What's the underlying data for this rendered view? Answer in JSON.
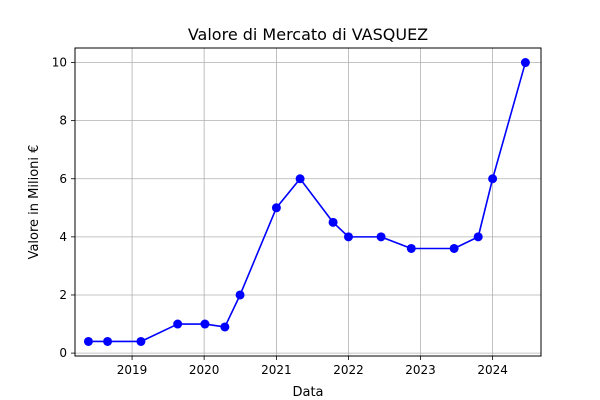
{
  "chart_data": {
    "type": "line",
    "title": "Valore di Mercato di VASQUEZ",
    "xlabel": "Data",
    "ylabel": "Valore in Milioni €",
    "x_tick_labels": [
      "2019",
      "2020",
      "2021",
      "2022",
      "2023",
      "2024"
    ],
    "y_tick_labels": [
      "0",
      "2",
      "4",
      "6",
      "8",
      "10"
    ],
    "xlim": [
      "2018-03-18",
      "2024-09-02"
    ],
    "ylim": [
      -0.1,
      10.5
    ],
    "grid": true,
    "series": [
      {
        "color": "#0000ff",
        "x": [
          "2018-05-25",
          "2018-08-30",
          "2019-02-15",
          "2019-08-20",
          "2020-01-05",
          "2020-04-15",
          "2020-07-01",
          "2021-01-01",
          "2021-05-01",
          "2021-10-15",
          "2022-01-01",
          "2022-06-15",
          "2022-11-15",
          "2023-06-20",
          "2023-10-20",
          "2024-01-01",
          "2024-06-15"
        ],
        "y": [
          0.4,
          0.4,
          0.4,
          1.0,
          1.0,
          0.9,
          2.0,
          5.0,
          6.0,
          4.5,
          4.0,
          4.0,
          3.6,
          3.6,
          4.0,
          6.0,
          10.0
        ]
      }
    ]
  }
}
